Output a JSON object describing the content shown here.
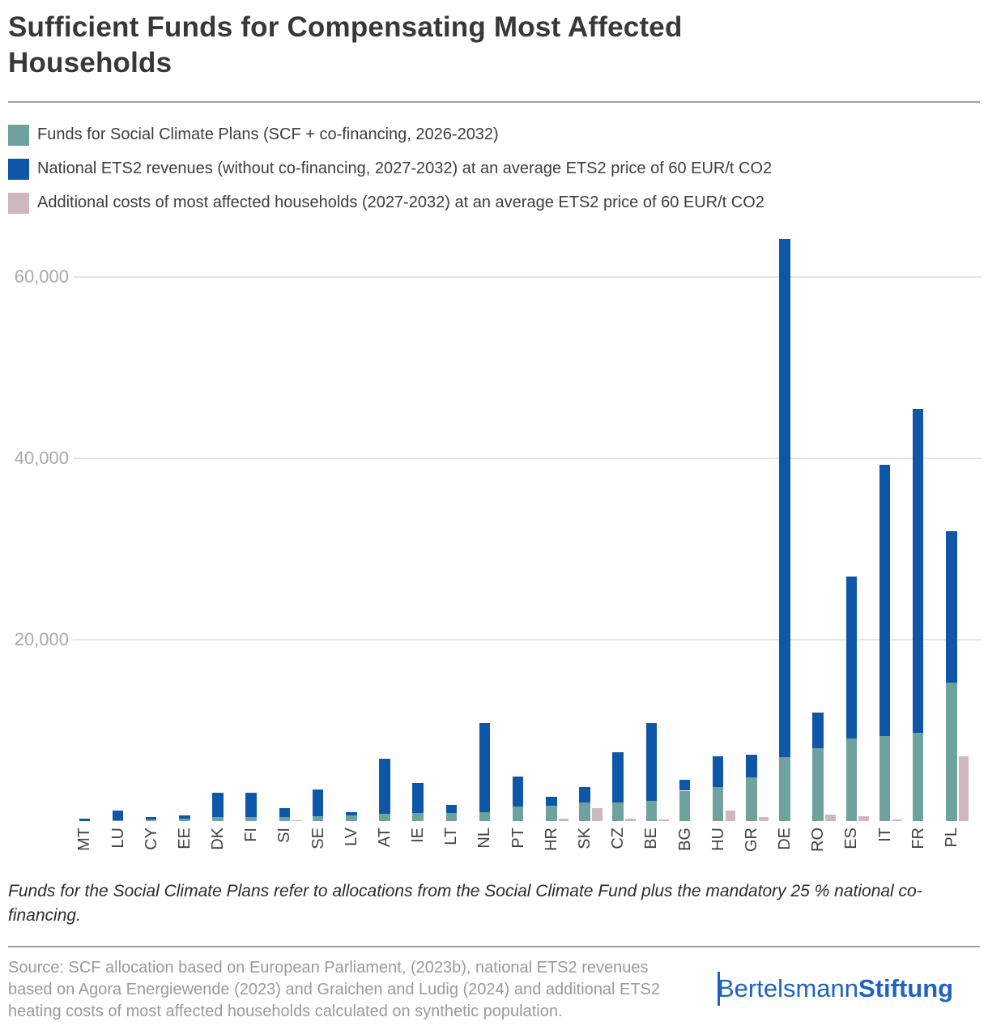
{
  "header": {
    "title": "Sufficient Funds for Compensating Most Affected Households"
  },
  "legend": {
    "items": [
      {
        "label": "Funds for Social Climate Plans (SCF + co-financing, 2026-2032)",
        "color": "#6FA19F"
      },
      {
        "label": "National ETS2 revenues (without co-financing, 2027-2032) at an average ETS2 price of 60 EUR/t CO2",
        "color": "#0E57A8"
      },
      {
        "label": "Additional costs of most affected households (2027-2032) at an average ETS2 price of 60 EUR/t CO2",
        "color": "#CFB7BF"
      }
    ]
  },
  "chart_data": {
    "type": "bar",
    "title": "Sufficient Funds for Compensating Most Affected Households",
    "xlabel": "",
    "ylabel": "",
    "unit": "million EUR",
    "grid": "horizontal",
    "legend_position": "top",
    "ylim": [
      0,
      65500
    ],
    "yticks": [
      20000,
      40000,
      60000
    ],
    "ytick_labels": [
      "20,000",
      "40,000",
      "60,000"
    ],
    "categories": [
      "MT",
      "LU",
      "CY",
      "EE",
      "DK",
      "FI",
      "SI",
      "SE",
      "LV",
      "AT",
      "IE",
      "LT",
      "NL",
      "PT",
      "HR",
      "SK",
      "CZ",
      "BE",
      "BG",
      "HU",
      "GR",
      "DE",
      "RO",
      "ES",
      "IT",
      "FR",
      "PL"
    ],
    "series": [
      {
        "name": "Funds for Social Climate Plans (SCF + co-financing, 2026-2032)",
        "color": "#6FA19F",
        "role": "stack-bottom",
        "values": [
          10,
          87,
          175,
          250,
          435,
          470,
          480,
          540,
          615,
          770,
          885,
          885,
          960,
          1630,
          1680,
          2045,
          2080,
          2220,
          3340,
          3755,
          4785,
          7040,
          8025,
          9125,
          9370,
          9705,
          15260
        ]
      },
      {
        "name": "National ETS2 revenues (without co-financing, 2027-2032) at an average ETS2 price of 60 EUR/t CO2",
        "color": "#0E57A8",
        "role": "stack-top",
        "values": [
          230,
          1075,
          250,
          350,
          2665,
          2630,
          980,
          2940,
          395,
          6080,
          3340,
          900,
          9820,
          3285,
          1000,
          1735,
          5480,
          8615,
          1190,
          3390,
          2565,
          57160,
          3940,
          17870,
          29895,
          35740,
          16710
        ]
      },
      {
        "name": "Additional costs of most affected households (2027-2032) at an average ETS2 price of 60 EUR/t CO2",
        "color": "#CFB7BF",
        "role": "grouped-side",
        "values": [
          0,
          0,
          0,
          0,
          0,
          0,
          130,
          0,
          0,
          0,
          0,
          0,
          0,
          0,
          250,
          1450,
          300,
          150,
          0,
          1200,
          450,
          0,
          750,
          500,
          160,
          0,
          7100
        ]
      }
    ]
  },
  "footnote": {
    "text": "Funds for the Social Climate Plans refer to allocations from the Social Climate Fund plus the mandatory 25 % national co-financing."
  },
  "source": {
    "text": "Source: SCF allocation based on European Parliament, (2023b), national ETS2 revenues based on Agora Energiewende (2023) and Graichen and Ludig (2024) and additional ETS2 heating costs of most affected households calculated on synthetic population."
  },
  "logo": {
    "brand_regular": "Bertelsmann",
    "brand_bold": "Stiftung",
    "color": "#1E63C2"
  }
}
